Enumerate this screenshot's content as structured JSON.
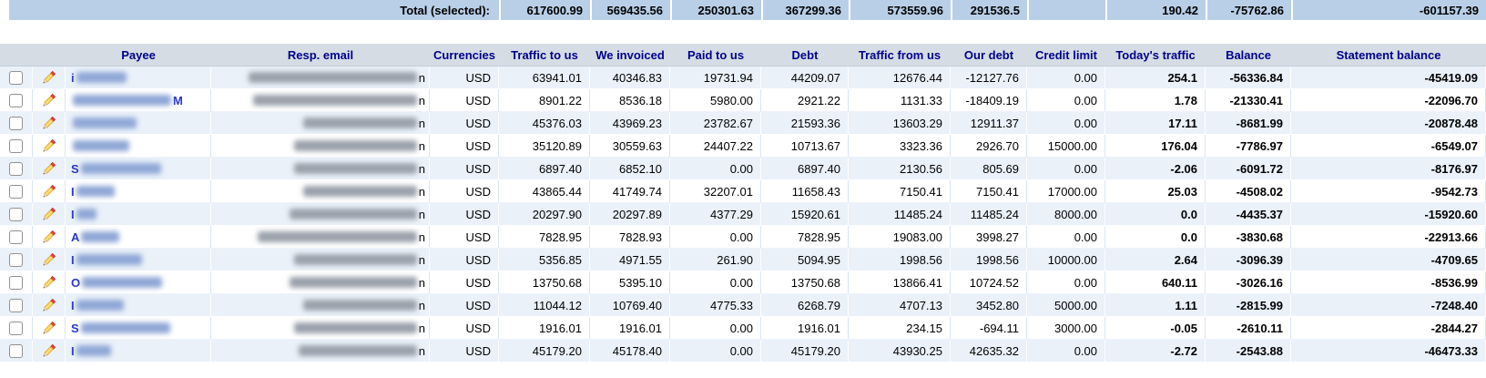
{
  "totals": {
    "label": "Total (selected):",
    "values": {
      "traffic_to_us": "617600.99",
      "we_invoiced": "569435.56",
      "paid_to_us": "250301.63",
      "debt": "367299.36",
      "traffic_from_us": "573559.96",
      "our_debt": "291536.5",
      "credit_limit": "",
      "todays_traffic": "190.42",
      "balance": "-75762.86",
      "statement_balance": "-601157.39"
    }
  },
  "columns": [
    {
      "key": "payee",
      "label": "Payee"
    },
    {
      "key": "email",
      "label": "Resp. email"
    },
    {
      "key": "currency",
      "label": "Currencies"
    },
    {
      "key": "traffic_to_us",
      "label": "Traffic to us"
    },
    {
      "key": "we_invoiced",
      "label": "We invoiced"
    },
    {
      "key": "paid_to_us",
      "label": "Paid to us"
    },
    {
      "key": "debt",
      "label": "Debt"
    },
    {
      "key": "traffic_from_us",
      "label": "Traffic from us"
    },
    {
      "key": "our_debt",
      "label": "Our debt"
    },
    {
      "key": "credit_limit",
      "label": "Credit limit"
    },
    {
      "key": "todays_traffic",
      "label": "Today's traffic"
    },
    {
      "key": "balance",
      "label": "Balance"
    },
    {
      "key": "statement_balance",
      "label": "Statement balance"
    }
  ],
  "rows": [
    {
      "payee_prefix": "i",
      "payee_blur": 55,
      "payee_suffix": "",
      "email_blur": 185,
      "email_suffix": "n",
      "currency": "USD",
      "traffic_to_us": "63941.01",
      "we_invoiced": "40346.83",
      "paid_to_us": "19731.94",
      "debt": "44209.07",
      "traffic_from_us": "12676.44",
      "our_debt": "-12127.76",
      "credit_limit": "0.00",
      "todays_traffic": "254.1",
      "balance": "-56336.84",
      "statement_balance": "-45419.09"
    },
    {
      "payee_prefix": "",
      "payee_blur": 108,
      "payee_suffix": "M",
      "email_blur": 180,
      "email_suffix": "n",
      "currency": "USD",
      "traffic_to_us": "8901.22",
      "we_invoiced": "8536.18",
      "paid_to_us": "5980.00",
      "debt": "2921.22",
      "traffic_from_us": "1131.33",
      "our_debt": "-18409.19",
      "credit_limit": "0.00",
      "todays_traffic": "1.78",
      "balance": "-21330.41",
      "statement_balance": "-22096.70"
    },
    {
      "payee_prefix": "",
      "payee_blur": 70,
      "payee_suffix": "",
      "email_blur": 125,
      "email_suffix": "n",
      "currency": "USD",
      "traffic_to_us": "45376.03",
      "we_invoiced": "43969.23",
      "paid_to_us": "23782.67",
      "debt": "21593.36",
      "traffic_from_us": "13603.29",
      "our_debt": "12911.37",
      "credit_limit": "0.00",
      "todays_traffic": "17.11",
      "balance": "-8681.99",
      "statement_balance": "-20878.48"
    },
    {
      "payee_prefix": "",
      "payee_blur": 62,
      "payee_suffix": "",
      "email_blur": 135,
      "email_suffix": "n",
      "currency": "USD",
      "traffic_to_us": "35120.89",
      "we_invoiced": "30559.63",
      "paid_to_us": "24407.22",
      "debt": "10713.67",
      "traffic_from_us": "3323.36",
      "our_debt": "2926.70",
      "credit_limit": "15000.00",
      "todays_traffic": "176.04",
      "balance": "-7786.97",
      "statement_balance": "-6549.07"
    },
    {
      "payee_prefix": "S",
      "payee_blur": 88,
      "payee_suffix": "",
      "email_blur": 135,
      "email_suffix": "n",
      "currency": "USD",
      "traffic_to_us": "6897.40",
      "we_invoiced": "6852.10",
      "paid_to_us": "0.00",
      "debt": "6897.40",
      "traffic_from_us": "2130.56",
      "our_debt": "805.69",
      "credit_limit": "0.00",
      "todays_traffic": "-2.06",
      "balance": "-6091.72",
      "statement_balance": "-8176.97"
    },
    {
      "payee_prefix": "I",
      "payee_blur": 42,
      "payee_suffix": "",
      "email_blur": 125,
      "email_suffix": "n",
      "currency": "USD",
      "traffic_to_us": "43865.44",
      "we_invoiced": "41749.74",
      "paid_to_us": "32207.01",
      "debt": "11658.43",
      "traffic_from_us": "7150.41",
      "our_debt": "7150.41",
      "credit_limit": "17000.00",
      "todays_traffic": "25.03",
      "balance": "-4508.02",
      "statement_balance": "-9542.73"
    },
    {
      "payee_prefix": "I",
      "payee_blur": 22,
      "payee_suffix": "",
      "email_blur": 140,
      "email_suffix": "n",
      "currency": "USD",
      "traffic_to_us": "20297.90",
      "we_invoiced": "20297.89",
      "paid_to_us": "4377.29",
      "debt": "15920.61",
      "traffic_from_us": "11485.24",
      "our_debt": "11485.24",
      "credit_limit": "8000.00",
      "todays_traffic": "0.0",
      "balance": "-4435.37",
      "statement_balance": "-15920.60"
    },
    {
      "payee_prefix": "A",
      "payee_blur": 42,
      "payee_suffix": "",
      "email_blur": 175,
      "email_suffix": "n",
      "currency": "USD",
      "traffic_to_us": "7828.95",
      "we_invoiced": "7828.93",
      "paid_to_us": "0.00",
      "debt": "7828.95",
      "traffic_from_us": "19083.00",
      "our_debt": "3998.27",
      "credit_limit": "0.00",
      "todays_traffic": "0.0",
      "balance": "-3830.68",
      "statement_balance": "-22913.66"
    },
    {
      "payee_prefix": "I",
      "payee_blur": 72,
      "payee_suffix": "",
      "email_blur": 135,
      "email_suffix": "n",
      "currency": "USD",
      "traffic_to_us": "5356.85",
      "we_invoiced": "4971.55",
      "paid_to_us": "261.90",
      "debt": "5094.95",
      "traffic_from_us": "1998.56",
      "our_debt": "1998.56",
      "credit_limit": "10000.00",
      "todays_traffic": "2.64",
      "balance": "-3096.39",
      "statement_balance": "-4709.65"
    },
    {
      "payee_prefix": "O",
      "payee_blur": 88,
      "payee_suffix": "",
      "email_blur": 140,
      "email_suffix": "n",
      "currency": "USD",
      "traffic_to_us": "13750.68",
      "we_invoiced": "5395.10",
      "paid_to_us": "0.00",
      "debt": "13750.68",
      "traffic_from_us": "13866.41",
      "our_debt": "10724.52",
      "credit_limit": "0.00",
      "todays_traffic": "640.11",
      "balance": "-3026.16",
      "statement_balance": "-8536.99"
    },
    {
      "payee_prefix": "I",
      "payee_blur": 52,
      "payee_suffix": "",
      "email_blur": 125,
      "email_suffix": "n",
      "currency": "USD",
      "traffic_to_us": "11044.12",
      "we_invoiced": "10769.40",
      "paid_to_us": "4775.33",
      "debt": "6268.79",
      "traffic_from_us": "4707.13",
      "our_debt": "3452.80",
      "credit_limit": "5000.00",
      "todays_traffic": "1.11",
      "balance": "-2815.99",
      "statement_balance": "-7248.40"
    },
    {
      "payee_prefix": "S",
      "payee_blur": 98,
      "payee_suffix": "",
      "email_blur": 135,
      "email_suffix": "n",
      "currency": "USD",
      "traffic_to_us": "1916.01",
      "we_invoiced": "1916.01",
      "paid_to_us": "0.00",
      "debt": "1916.01",
      "traffic_from_us": "234.15",
      "our_debt": "-694.11",
      "credit_limit": "3000.00",
      "todays_traffic": "-0.05",
      "balance": "-2610.11",
      "statement_balance": "-2844.27"
    },
    {
      "payee_prefix": "I",
      "payee_blur": 38,
      "payee_suffix": "",
      "email_blur": 130,
      "email_suffix": "n",
      "currency": "USD",
      "traffic_to_us": "45179.20",
      "we_invoiced": "45178.40",
      "paid_to_us": "0.00",
      "debt": "45179.20",
      "traffic_from_us": "43930.25",
      "our_debt": "42635.32",
      "credit_limit": "0.00",
      "todays_traffic": "-2.72",
      "balance": "-2543.88",
      "statement_balance": "-46473.33"
    }
  ],
  "colors": {
    "totals_bar_bg": "#b9cfe8",
    "header_bg": "#d5dce4",
    "header_text": "#00008b",
    "row_alt_bg": "#eaf1f9",
    "link_blue": "#2a35c8"
  },
  "icons": {
    "edit": "pencil-icon",
    "row_select": "checkbox"
  }
}
